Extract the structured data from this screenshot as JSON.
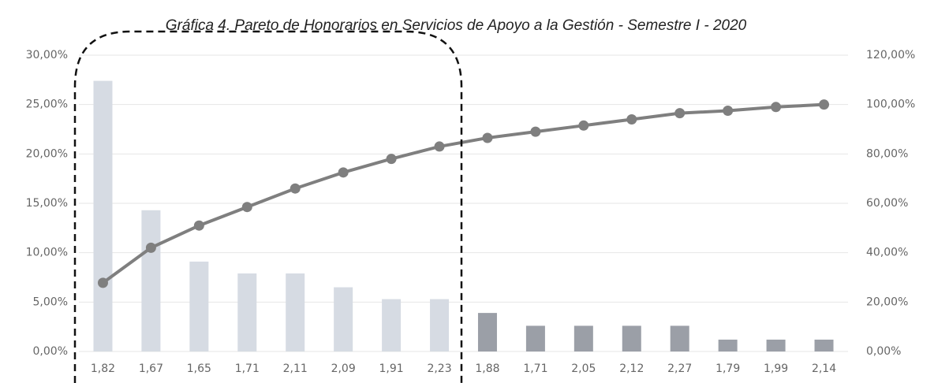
{
  "chart_data": {
    "type": "pareto",
    "title": "Gráfica 4. Pareto de Honorarios en Servicios de Apoyo a la Gestión - Semestre I - 2020",
    "categories": [
      "1,82",
      "1,67",
      "1,65",
      "1,71",
      "2,11",
      "2,09",
      "1,91",
      "2,23",
      "1,88",
      "1,71",
      "2,05",
      "2,12",
      "2,27",
      "1,79",
      "1,99",
      "2,14"
    ],
    "series": [
      {
        "type": "bar",
        "colors": [
          "#d6dbe3",
          "#d6dbe3",
          "#d6dbe3",
          "#d6dbe3",
          "#d6dbe3",
          "#d6dbe3",
          "#d6dbe3",
          "#d6dbe3",
          "#9b9fa7",
          "#9b9fa7",
          "#9b9fa7",
          "#9b9fa7",
          "#9b9fa7",
          "#9b9fa7",
          "#9b9fa7",
          "#9b9fa7"
        ],
        "values": [
          27.4,
          14.3,
          9.1,
          7.9,
          7.9,
          6.5,
          5.3,
          5.3,
          3.9,
          2.6,
          2.6,
          2.6,
          2.6,
          1.2,
          1.2,
          1.2
        ]
      },
      {
        "type": "line",
        "axis": "y2",
        "color": "#7f7f7f",
        "values": [
          27.8,
          42,
          51,
          58.5,
          66,
          72.5,
          78,
          83,
          86.5,
          89,
          91.5,
          94,
          96.5,
          97.5,
          99,
          100
        ]
      }
    ],
    "ylim": [
      0,
      30
    ],
    "yticks": [
      {
        "value": 0,
        "label": "0,00%"
      },
      {
        "value": 5,
        "label": "5,00%"
      },
      {
        "value": 10,
        "label": "10,00%"
      },
      {
        "value": 15,
        "label": "15,00%"
      },
      {
        "value": 20,
        "label": "20,00%"
      },
      {
        "value": 25,
        "label": "25,00%"
      },
      {
        "value": 30,
        "label": "30,00%"
      }
    ],
    "y2lim": [
      0,
      120
    ],
    "y2ticks": [
      {
        "value": 0,
        "label": "0,00%"
      },
      {
        "value": 20,
        "label": "20,00%"
      },
      {
        "value": 40,
        "label": "40,00%"
      },
      {
        "value": 60,
        "label": "60,00%"
      },
      {
        "value": 80,
        "label": "80,00%"
      },
      {
        "value": 100,
        "label": "100,00%"
      },
      {
        "value": 120,
        "label": "120,00%"
      }
    ],
    "grid": true
  }
}
